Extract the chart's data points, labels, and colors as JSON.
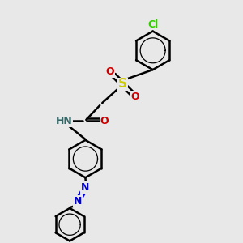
{
  "bg_color": "#e8e8e8",
  "line_color": "#000000",
  "bond_width": 1.8,
  "figsize": [
    3.0,
    3.0
  ],
  "dpi": 100,
  "colors": {
    "N": "#0000cc",
    "O": "#cc0000",
    "S": "#cccc00",
    "Cl": "#33cc00",
    "H": "#336666",
    "bond": "#000000"
  },
  "xlim": [
    0,
    10
  ],
  "ylim": [
    0,
    10
  ]
}
